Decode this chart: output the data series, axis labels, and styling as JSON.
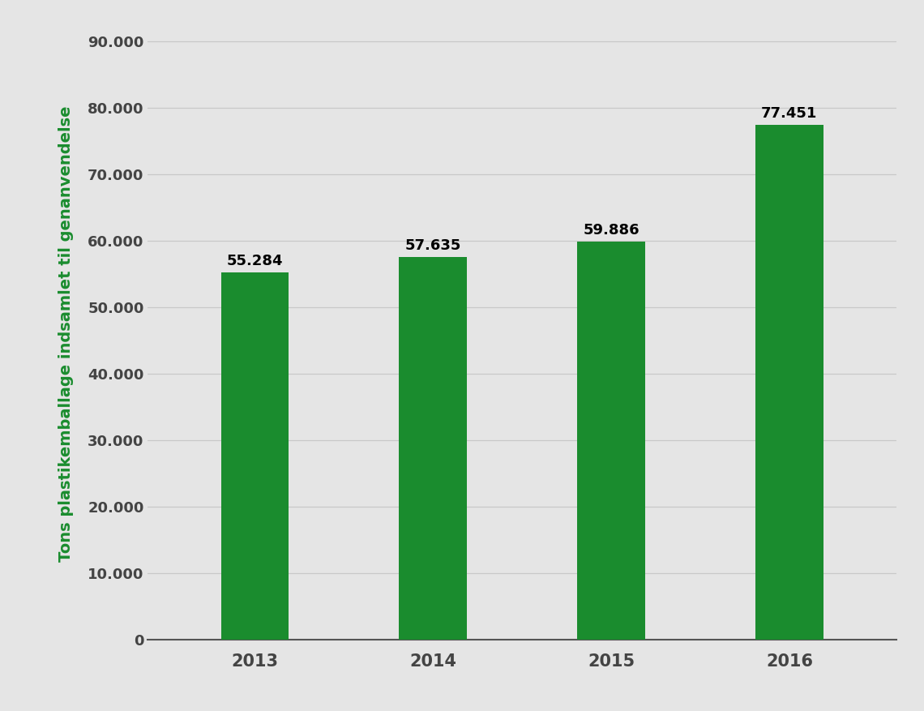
{
  "categories": [
    "2013",
    "2014",
    "2015",
    "2016"
  ],
  "values": [
    55284,
    57635,
    59886,
    77451
  ],
  "bar_color": "#1a8c2e",
  "ylabel": "Tons plastikemballage indsamlet til genanvendelse",
  "ylabel_color": "#1a8c2e",
  "ylabel_fontsize": 14,
  "tick_labels": [
    "0",
    "10.000",
    "20.000",
    "30.000",
    "40.000",
    "50.000",
    "60.000",
    "70.000",
    "80.000",
    "90.000"
  ],
  "yticks": [
    0,
    10000,
    20000,
    30000,
    40000,
    50000,
    60000,
    70000,
    80000,
    90000
  ],
  "ylim": [
    0,
    92000
  ],
  "bar_width": 0.38,
  "background_color": "#e5e5e5",
  "grid_color": "#c8c8c8",
  "tick_fontsize": 13,
  "xlabel_fontsize": 15,
  "value_labels": [
    "55.284",
    "57.635",
    "59.886",
    "77.451"
  ],
  "value_label_fontsize": 13
}
